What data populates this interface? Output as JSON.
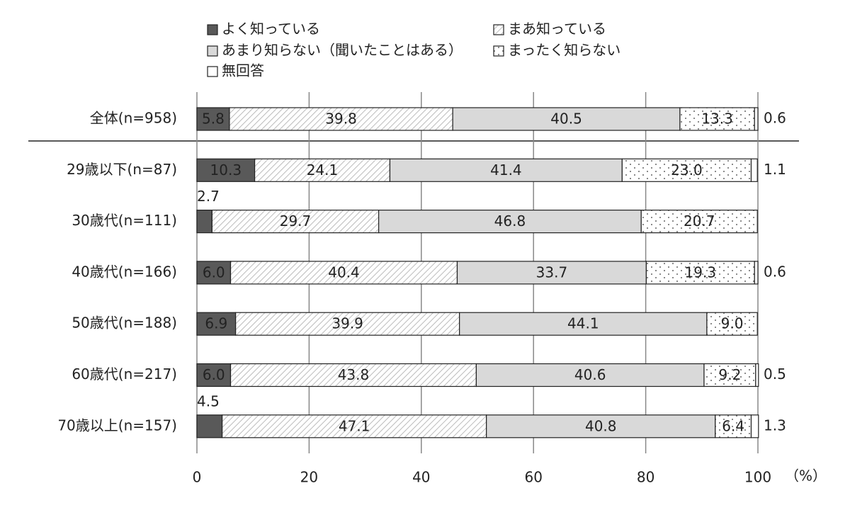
{
  "chart_data": {
    "type": "stacked-bar-horizontal",
    "categories": [
      "全体(n=958)",
      "29歳以下(n=87)",
      "30歳代(n=111)",
      "40歳代(n=166)",
      "50歳代(n=188)",
      "60歳代(n=217)",
      "70歳以上(n=157)"
    ],
    "series": [
      {
        "name": "よく知っている",
        "color": "#595959",
        "pattern": "solid",
        "values": [
          5.8,
          10.3,
          2.7,
          6.0,
          6.9,
          6.0,
          4.5
        ],
        "value_labels": [
          "5.8",
          "10.3",
          "2.7",
          "6.0",
          "6.9",
          "6.0",
          "4.5"
        ]
      },
      {
        "name": "まあ知っている",
        "color": "#bfbfbf",
        "pattern": "hatch",
        "values": [
          39.8,
          24.1,
          29.7,
          40.4,
          39.9,
          43.8,
          47.1
        ],
        "value_labels": [
          "39.8",
          "24.1",
          "29.7",
          "40.4",
          "39.9",
          "43.8",
          "47.1"
        ]
      },
      {
        "name": "あまり知らない（聞いたことはある）",
        "color": "#d9d9d9",
        "pattern": "solid",
        "values": [
          40.5,
          41.4,
          46.8,
          33.7,
          44.1,
          40.6,
          40.8
        ],
        "value_labels": [
          "40.5",
          "41.4",
          "46.8",
          "33.7",
          "44.1",
          "40.6",
          "40.8"
        ]
      },
      {
        "name": "まったく知らない",
        "color": "#808080",
        "pattern": "dots",
        "values": [
          13.3,
          23.0,
          20.7,
          19.3,
          9.0,
          9.2,
          6.4
        ],
        "value_labels": [
          "13.3",
          "23.0",
          "20.7",
          "19.3",
          "9.0",
          "9.2",
          "6.4"
        ]
      },
      {
        "name": "無回答",
        "color": "#ffffff",
        "pattern": "solid",
        "values": [
          0.6,
          1.1,
          null,
          0.6,
          null,
          0.5,
          1.3
        ],
        "value_labels": [
          "0.6",
          "1.1",
          null,
          "0.6",
          null,
          "0.5",
          "1.3"
        ]
      }
    ],
    "xlim": [
      0,
      100
    ],
    "xticks": [
      0,
      20,
      40,
      60,
      80,
      100
    ],
    "x_unit": "（%）",
    "grid": true
  }
}
